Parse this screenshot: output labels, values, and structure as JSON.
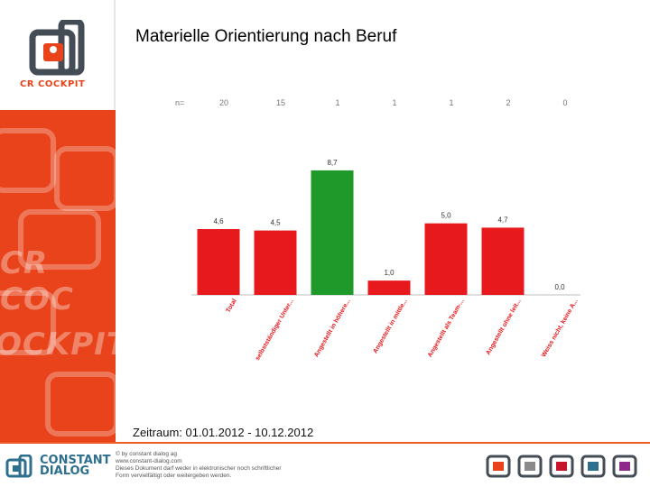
{
  "page": {
    "title": "Materielle Orientierung nach Beruf",
    "period": "Zeitraum: 01.01.2012 - 10.12.2012"
  },
  "logo": {
    "text": "CR COCKPIT"
  },
  "chart_data": {
    "type": "bar",
    "n_label": "n=",
    "categories": [
      "Total",
      "selbstständiger Unter...",
      "Angestellt in höhere...",
      "Angestellt in mittle...",
      "Angestellt als Team-...",
      "Angestellt ohne leit...",
      "Weiss nicht, keine A..."
    ],
    "n_values": [
      "20",
      "15",
      "1",
      "1",
      "1",
      "2",
      "0"
    ],
    "values": [
      4.6,
      4.5,
      8.7,
      1.0,
      5.0,
      4.7,
      0.0
    ],
    "value_labels": [
      "4,6",
      "4,5",
      "8,7",
      "1,0",
      "5,0",
      "4,7",
      "0,0"
    ],
    "bar_colors": [
      "#e8191c",
      "#e8191c",
      "#1f9a2a",
      "#e8191c",
      "#e8191c",
      "#e8191c",
      "#e8191c"
    ],
    "ylim": [
      0,
      10
    ],
    "grid": false,
    "title": "",
    "xlabel": "",
    "ylabel": ""
  },
  "footer": {
    "brand_line1": "CONSTANT",
    "brand_line2": "DIALOG",
    "copy_lines": [
      "© by constant dialog ag",
      "www.constant-dialog.com",
      "Dieses Dokument darf weder in elektronischer noch schriftlicher",
      "Form vervielfältigt oder weitergeben werden."
    ],
    "product_icons": [
      {
        "name": "cr-cockpit",
        "color": "#e8431a"
      },
      {
        "name": "hr-cockpit",
        "color": "#8a8a8a"
      },
      {
        "name": "kv-cockpit",
        "color": "#c7162b"
      },
      {
        "name": "dialog-development",
        "color": "#2e6f8e"
      },
      {
        "name": "dialog-research",
        "color": "#8e2a8a"
      }
    ]
  }
}
